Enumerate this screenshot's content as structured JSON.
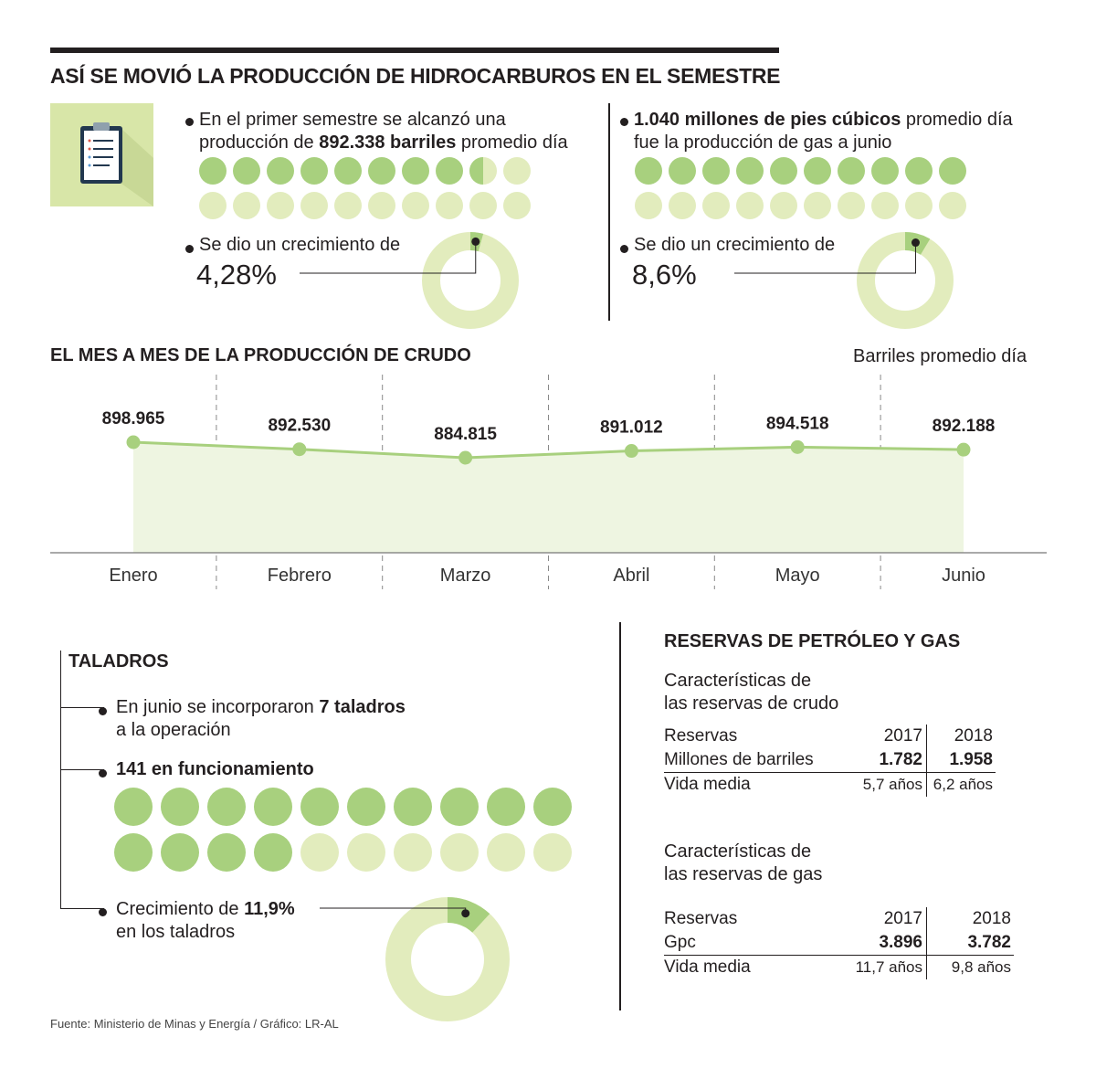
{
  "title": "ASÍ SE MOVIÓ LA PRODUCCIÓN DE HIDROCARBUROS EN EL SEMESTRE",
  "colors": {
    "dark_green": "#a8d07e",
    "light_green": "#e2ecbd",
    "line_green": "#a8d07e",
    "area_green": "#eef5e1",
    "text": "#231f20"
  },
  "icons": {
    "clipboard": "clipboard-icon"
  },
  "oil": {
    "text_pre": "En el primer semestre se alcanzó una",
    "text_mid_pre": "producción de ",
    "text_bold": "892.338 barriles",
    "text_post": " promedio día",
    "dots_filled": 8.5,
    "dots_total": 20,
    "growth_label": "Se dio un crecimiento de",
    "growth_value": "4,28%",
    "growth_fraction": 0.0428
  },
  "gas": {
    "text_bold": "1.040 millones de pies cúbicos",
    "text_post": " promedio día",
    "text_line2": "fue la producción de gas a junio",
    "dots_filled": 10,
    "dots_total": 20,
    "growth_label": "Se dio un crecimiento de",
    "growth_value": "8,6%",
    "growth_fraction": 0.086
  },
  "monthly": {
    "section_title": "EL MES A MES DE LA PRODUCCIÓN DE CRUDO",
    "unit": "Barriles promedio día"
  },
  "chart_data": {
    "type": "area",
    "title": "EL MES A MES DE LA PRODUCCIÓN DE CRUDO",
    "ylabel": "Barriles promedio día",
    "categories": [
      "Enero",
      "Febrero",
      "Marzo",
      "Abril",
      "Mayo",
      "Junio"
    ],
    "values": [
      898965,
      892530,
      884815,
      891012,
      894518,
      892188
    ],
    "labels": [
      "898.965",
      "892.530",
      "884.815",
      "891.012",
      "894.518",
      "892.188"
    ],
    "grid": "vertical dashed separators"
  },
  "rigs": {
    "title": "TALADROS",
    "line1_pre": "En junio se incorporaron ",
    "line1_bold": "7 taladros",
    "line2": "a la operación",
    "operating": "141 en funcionamiento",
    "dots_filled": 14,
    "dots_total": 20,
    "growth_pre": "Crecimiento de ",
    "growth_bold": "11,9%",
    "growth_line2": "en los taladros",
    "growth_fraction": 0.119
  },
  "reserves": {
    "title": "RESERVAS DE PETRÓLEO Y GAS",
    "crude": {
      "subtitle1": "Características de",
      "subtitle2": "las reservas de crudo",
      "header": "Reservas",
      "year1": "2017",
      "year2": "2018",
      "row1_label": "Millones de barriles",
      "row1_v1": "1.782",
      "row1_v2": "1.958",
      "row2_label": "Vida media",
      "row2_v1": "5,7 años",
      "row2_v2": "6,2 años"
    },
    "gas": {
      "subtitle1": "Características de",
      "subtitle2": "las reservas de gas",
      "header": "Reservas",
      "year1": "2017",
      "year2": "2018",
      "row1_label": "Gpc",
      "row1_v1": "3.896",
      "row1_v2": "3.782",
      "row2_label": "Vida media",
      "row2_v1": "11,7 años",
      "row2_v2": "9,8 años"
    }
  },
  "footer": "Fuente: Ministerio de Minas y Energía / Gráfico: LR-AL"
}
